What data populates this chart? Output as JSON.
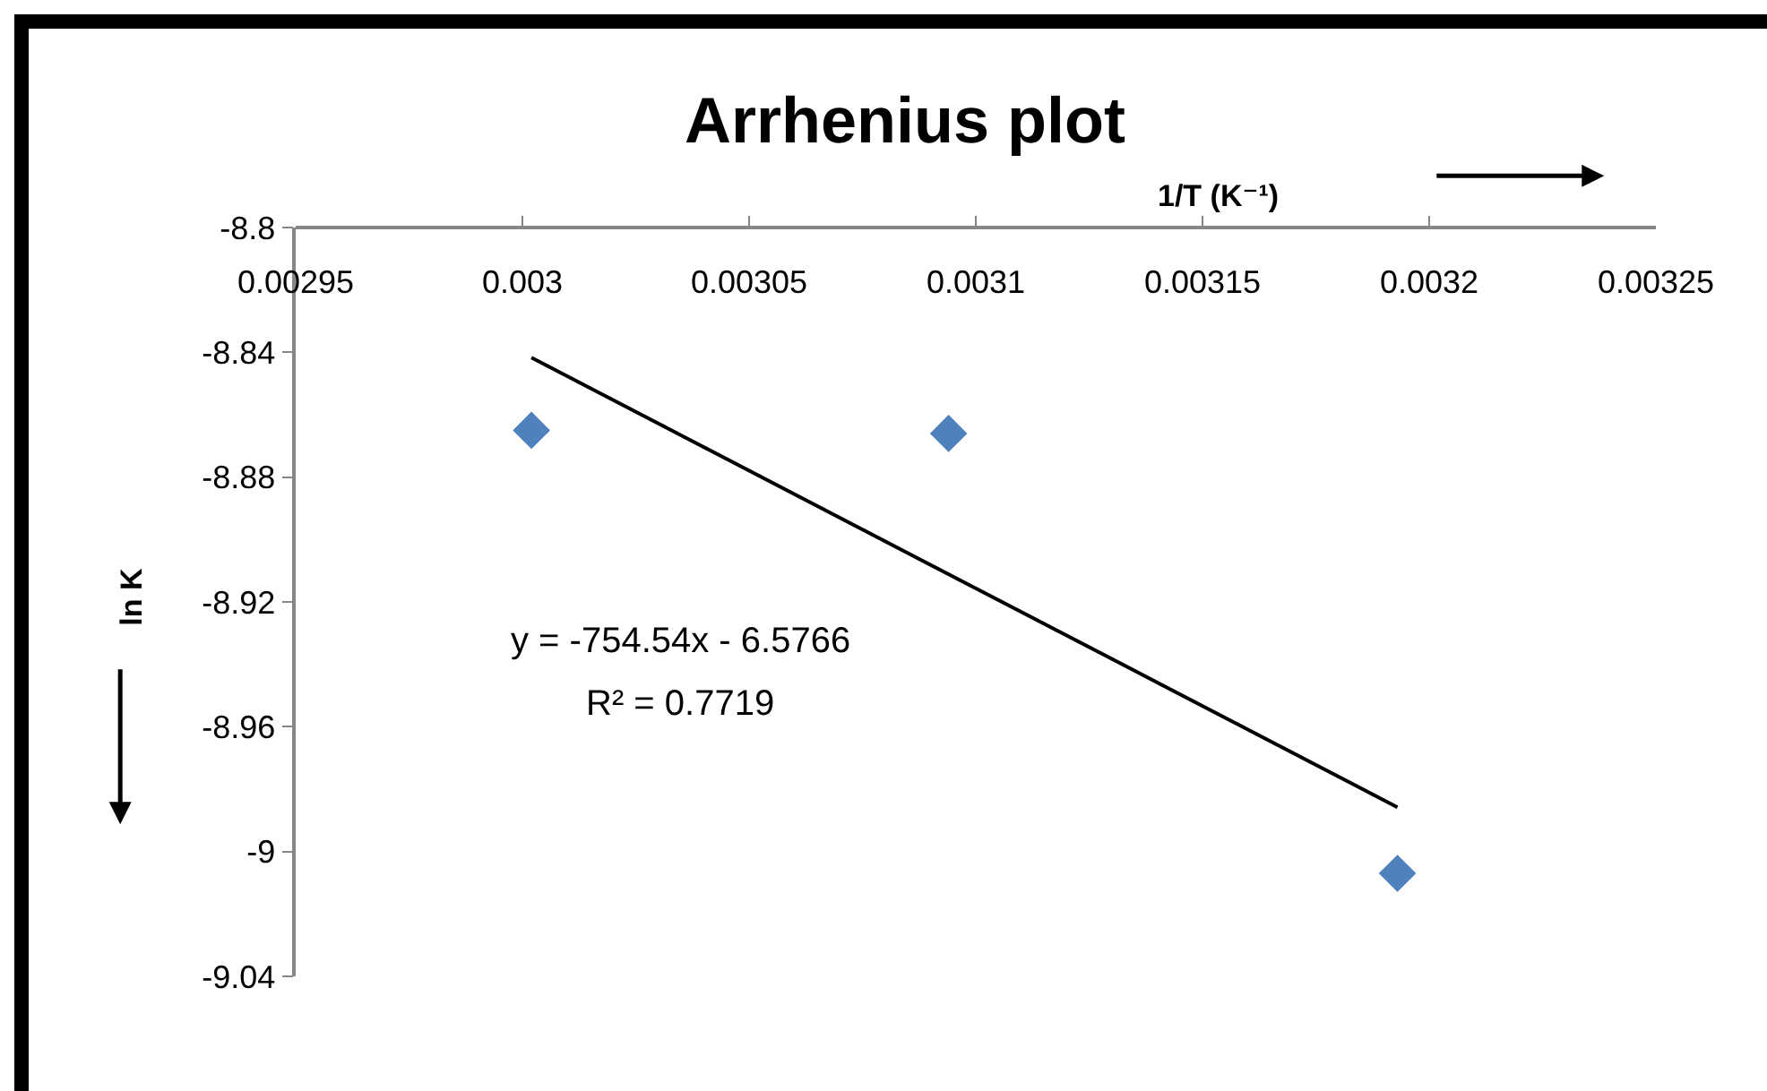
{
  "chart_data": {
    "type": "scatter",
    "title": "Arrhenius plot",
    "xlabel": "1/T (K⁻¹)",
    "ylabel": "ln K",
    "series": [
      {
        "type": "scatter",
        "color": "#4f81bd",
        "marker": "diamond",
        "x": [
          0.003002,
          0.003094,
          0.003193
        ],
        "values": [
          -8.865,
          -8.866,
          -9.007
        ]
      },
      {
        "type": "line",
        "color": "#000000",
        "marker": "none",
        "x": [
          0.003002,
          0.003193
        ],
        "values": [
          -8.8417,
          -8.9858
        ]
      }
    ],
    "xlim": [
      0.00295,
      0.00325
    ],
    "xticks": [
      0.00295,
      0.003,
      0.00305,
      0.0031,
      0.00315,
      0.0032,
      0.00325
    ],
    "ylim": [
      -9.04,
      -8.8
    ],
    "yticks": [
      -8.8,
      -8.84,
      -8.88,
      -8.92,
      -8.96,
      -9,
      -9.04
    ],
    "annotations": [
      "y = -754.54x - 6.5766",
      "R² = 0.7719"
    ],
    "grid": false
  }
}
